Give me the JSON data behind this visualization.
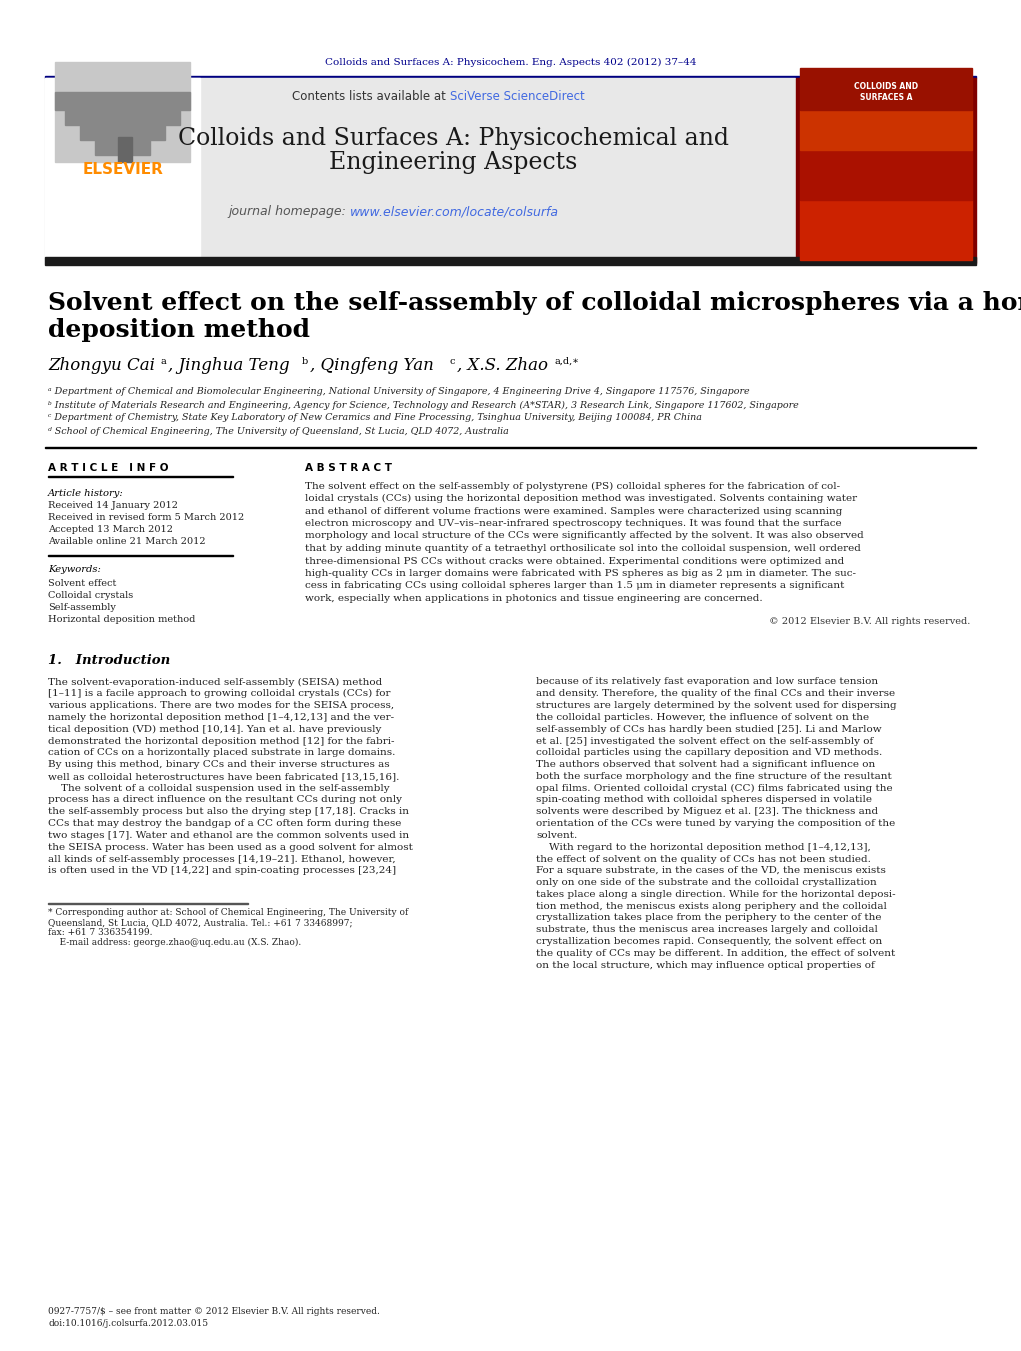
{
  "page_bg": "#ffffff",
  "top_citation": "Colloids and Surfaces A: Physicochem. Eng. Aspects 402 (2012) 37–44",
  "top_citation_color": "#00008B",
  "header_bg": "#E8E8E8",
  "journal_title_line1": "Colloids and Surfaces A: Physicochemical and",
  "journal_title_line2": "Engineering Aspects",
  "journal_title_color": "#1a1a1a",
  "contents_text": "Contents lists available at ",
  "sciverse_text": "SciVerse ScienceDirect",
  "sciverse_color": "#4169E1",
  "homepage_text": "journal homepage: ",
  "homepage_url": "www.elsevier.com/locate/colsurfa",
  "homepage_url_color": "#4169E1",
  "elsevier_color": "#FF8C00",
  "paper_title_line1": "Solvent effect on the self-assembly of colloidal microspheres via a horizontal",
  "paper_title_line2": "deposition method",
  "paper_title_color": "#000000",
  "authors_color": "#000000",
  "affil_a": "ᵃ Department of Chemical and Biomolecular Engineering, National University of Singapore, 4 Engineering Drive 4, Singapore 117576, Singapore",
  "affil_b": "ᵇ Institute of Materials Research and Engineering, Agency for Science, Technology and Research (A*STAR), 3 Research Link, Singapore 117602, Singapore",
  "affil_c": "ᶜ Department of Chemistry, State Key Laboratory of New Ceramics and Fine Processing, Tsinghua University, Beijing 100084, PR China",
  "affil_d": "ᵈ School of Chemical Engineering, The University of Queensland, St Lucia, QLD 4072, Australia",
  "article_info_header": "A R T I C L E   I N F O",
  "abstract_header": "A B S T R A C T",
  "article_history_label": "Article history:",
  "received_text": "Received 14 January 2012",
  "revised_text": "Received in revised form 5 March 2012",
  "accepted_text": "Accepted 13 March 2012",
  "available_text": "Available online 21 March 2012",
  "keywords_label": "Keywords:",
  "keyword1": "Solvent effect",
  "keyword2": "Colloidal crystals",
  "keyword3": "Self-assembly",
  "keyword4": "Horizontal deposition method",
  "copyright_text": "© 2012 Elsevier B.V. All rights reserved.",
  "intro_header": "1.   Introduction",
  "dark_bar_color": "#1a1a1a",
  "separator_color": "#000000",
  "abstract_lines": [
    "The solvent effect on the self-assembly of polystyrene (PS) colloidal spheres for the fabrication of col-",
    "loidal crystals (CCs) using the horizontal deposition method was investigated. Solvents containing water",
    "and ethanol of different volume fractions were examined. Samples were characterized using scanning",
    "electron microscopy and UV–vis–near-infrared spectroscopy techniques. It was found that the surface",
    "morphology and local structure of the CCs were significantly affected by the solvent. It was also observed",
    "that by adding minute quantity of a tetraethyl orthosilicate sol into the colloidal suspension, well ordered",
    "three-dimensional PS CCs without cracks were obtained. Experimental conditions were optimized and",
    "high-quality CCs in larger domains were fabricated with PS spheres as big as 2 μm in diameter. The suc-",
    "cess in fabricating CCs using colloidal spheres larger than 1.5 μm in diameter represents a significant",
    "work, especially when applications in photonics and tissue engineering are concerned."
  ],
  "intro_col1_lines": [
    "The solvent-evaporation-induced self-assembly (SEISA) method",
    "[1–11] is a facile approach to growing colloidal crystals (CCs) for",
    "various applications. There are two modes for the SEISA process,",
    "namely the horizontal deposition method [1–4,12,13] and the ver-",
    "tical deposition (VD) method [10,14]. Yan et al. have previously",
    "demonstrated the horizontal deposition method [12] for the fabri-",
    "cation of CCs on a horizontally placed substrate in large domains.",
    "By using this method, binary CCs and their inverse structures as",
    "well as colloidal heterostructures have been fabricated [13,15,16].",
    "    The solvent of a colloidal suspension used in the self-assembly",
    "process has a direct influence on the resultant CCs during not only",
    "the self-assembly process but also the drying step [17,18]. Cracks in",
    "CCs that may destroy the bandgap of a CC often form during these",
    "two stages [17]. Water and ethanol are the common solvents used in",
    "the SEISA process. Water has been used as a good solvent for almost",
    "all kinds of self-assembly processes [14,19–21]. Ethanol, however,",
    "is often used in the VD [14,22] and spin-coating processes [23,24]"
  ],
  "intro_col2_lines": [
    "because of its relatively fast evaporation and low surface tension",
    "and density. Therefore, the quality of the final CCs and their inverse",
    "structures are largely determined by the solvent used for dispersing",
    "the colloidal particles. However, the influence of solvent on the",
    "self-assembly of CCs has hardly been studied [25]. Li and Marlow",
    "et al. [25] investigated the solvent effect on the self-assembly of",
    "colloidal particles using the capillary deposition and VD methods.",
    "The authors observed that solvent had a significant influence on",
    "both the surface morphology and the fine structure of the resultant",
    "opal films. Oriented colloidal crystal (CC) films fabricated using the",
    "spin-coating method with colloidal spheres dispersed in volatile",
    "solvents were described by Miguez et al. [23]. The thickness and",
    "orientation of the CCs were tuned by varying the composition of the",
    "solvent.",
    "    With regard to the horizontal deposition method [1–4,12,13],",
    "the effect of solvent on the quality of CCs has not been studied.",
    "For a square substrate, in the cases of the VD, the meniscus exists",
    "only on one side of the substrate and the colloidal crystallization",
    "takes place along a single direction. While for the horizontal deposi-",
    "tion method, the meniscus exists along periphery and the colloidal",
    "crystallization takes place from the periphery to the center of the",
    "substrate, thus the meniscus area increases largely and colloidal",
    "crystallization becomes rapid. Consequently, the solvent effect on",
    "the quality of CCs may be different. In addition, the effect of solvent",
    "on the local structure, which may influence optical properties of"
  ],
  "footnote_lines": [
    "* Corresponding author at: School of Chemical Engineering, The University of",
    "Queensland, St Lucia, QLD 4072, Australia. Tel.: +61 7 33468997;",
    "fax: +61 7 336354199.",
    "    E-mail address: george.zhao@uq.edu.au (X.S. Zhao)."
  ],
  "doi_lines": [
    "0927-7757/$ – see front matter © 2012 Elsevier B.V. All rights reserved.",
    "doi:10.1016/j.colsurfa.2012.03.015"
  ]
}
